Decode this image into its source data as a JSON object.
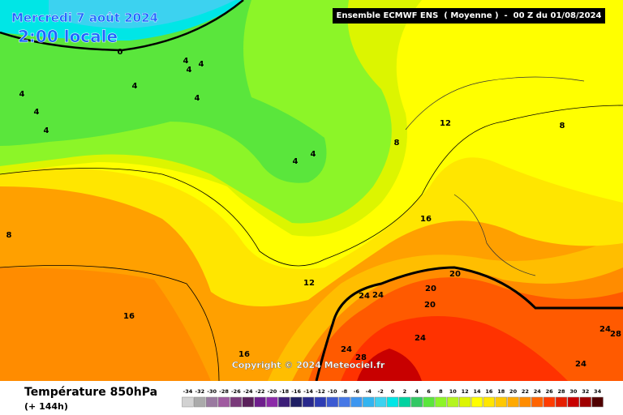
{
  "header": {
    "date": "Mercredi 7 août 2024",
    "time": "2:00 locale",
    "run": "Ensemble ECMWF ENS  ( Moyenne )  -  00 Z du 01/08/2024"
  },
  "map": {
    "contour_labels": [
      "0",
      "4",
      "4",
      "4",
      "4",
      "4",
      "4",
      "4",
      "4",
      "4",
      "4",
      "8",
      "12",
      "8",
      "8",
      "16",
      "12",
      "20",
      "20",
      "20",
      "24",
      "24",
      "24",
      "24",
      "28",
      "16",
      "16",
      "24",
      "28",
      "24"
    ],
    "copyright": "Copyright © 2024 Meteociel.fr"
  },
  "legend": {
    "title": "Température 850hPa",
    "lead": "(+ 144h)",
    "ticks": [
      "-34",
      "-32",
      "-30",
      "-28",
      "-26",
      "-24",
      "-22",
      "-20",
      "-18",
      "-16",
      "-14",
      "-12",
      "-10",
      "-8",
      "-6",
      "-4",
      "-2",
      "0",
      "2",
      "4",
      "6",
      "8",
      "10",
      "12",
      "14",
      "16",
      "18",
      "20",
      "22",
      "24",
      "26",
      "28",
      "30",
      "32",
      "34"
    ],
    "colors": [
      "#d2d2d2",
      "#aaaaaa",
      "#9a7aa0",
      "#a05aa0",
      "#7a3a7a",
      "#5a205a",
      "#6e1e8c",
      "#8c2aa8",
      "#3c1e78",
      "#1e1e64",
      "#28288c",
      "#2d3cb4",
      "#3c5ad2",
      "#4678e6",
      "#3c96f0",
      "#32b4f0",
      "#3cd2f0",
      "#00e6e6",
      "#00d2a0",
      "#32c864",
      "#5ae63c",
      "#8cf528",
      "#b4f51e",
      "#dcf500",
      "#ffff00",
      "#ffe600",
      "#ffc800",
      "#ffaa00",
      "#ff8c00",
      "#ff6400",
      "#ff3c00",
      "#e61e00",
      "#c80000",
      "#a00000",
      "#500000"
    ]
  }
}
